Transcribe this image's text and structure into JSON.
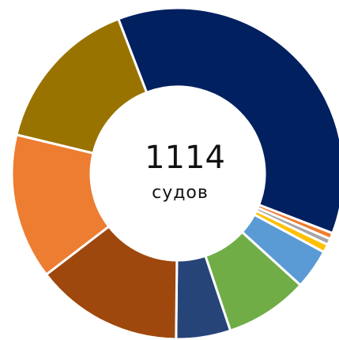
{
  "chart_data": {
    "type": "pie",
    "center_value": "1114",
    "center_unit": "судов",
    "values": [
      36.7,
      0.6,
      0.6,
      0.8,
      3.9,
      8.1,
      5.3,
      14.4,
      14.2,
      15.4
    ],
    "colors": [
      "#002060",
      "#ed7d31",
      "#a5a5a5",
      "#ffc000",
      "#5b9bd5",
      "#70ad47",
      "#264478",
      "#9e480e",
      "#ed7d31",
      "#997300"
    ]
  }
}
